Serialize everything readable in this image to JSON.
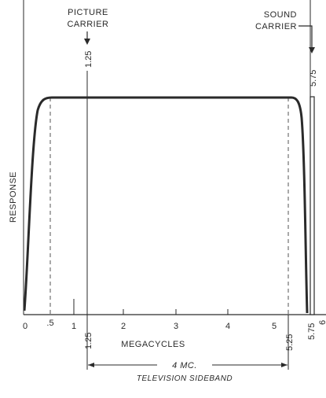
{
  "labels": {
    "picture_carrier_line1": "PICTURE",
    "picture_carrier_line2": "CARRIER",
    "sound_carrier_line1": "SOUND",
    "sound_carrier_line2": "CARRIER",
    "response": "RESPONSE",
    "megacycles": "MEGACYCLES",
    "bandwidth": "4 MC.",
    "sideband": "TELEVISION SIDEBAND"
  },
  "ticks": {
    "zero": "0",
    "half": ".5",
    "one": "1",
    "two": "2",
    "three": "3",
    "four": "4",
    "five": "5"
  },
  "markers": {
    "picture_top": "1.25",
    "picture_bottom": "1.25",
    "sideband_end": "5.25",
    "sound_bottom": "5.75",
    "sound_top": "5.75",
    "edge": "6"
  },
  "colors": {
    "ink": "#2a2a2a",
    "background": "#ffffff"
  }
}
